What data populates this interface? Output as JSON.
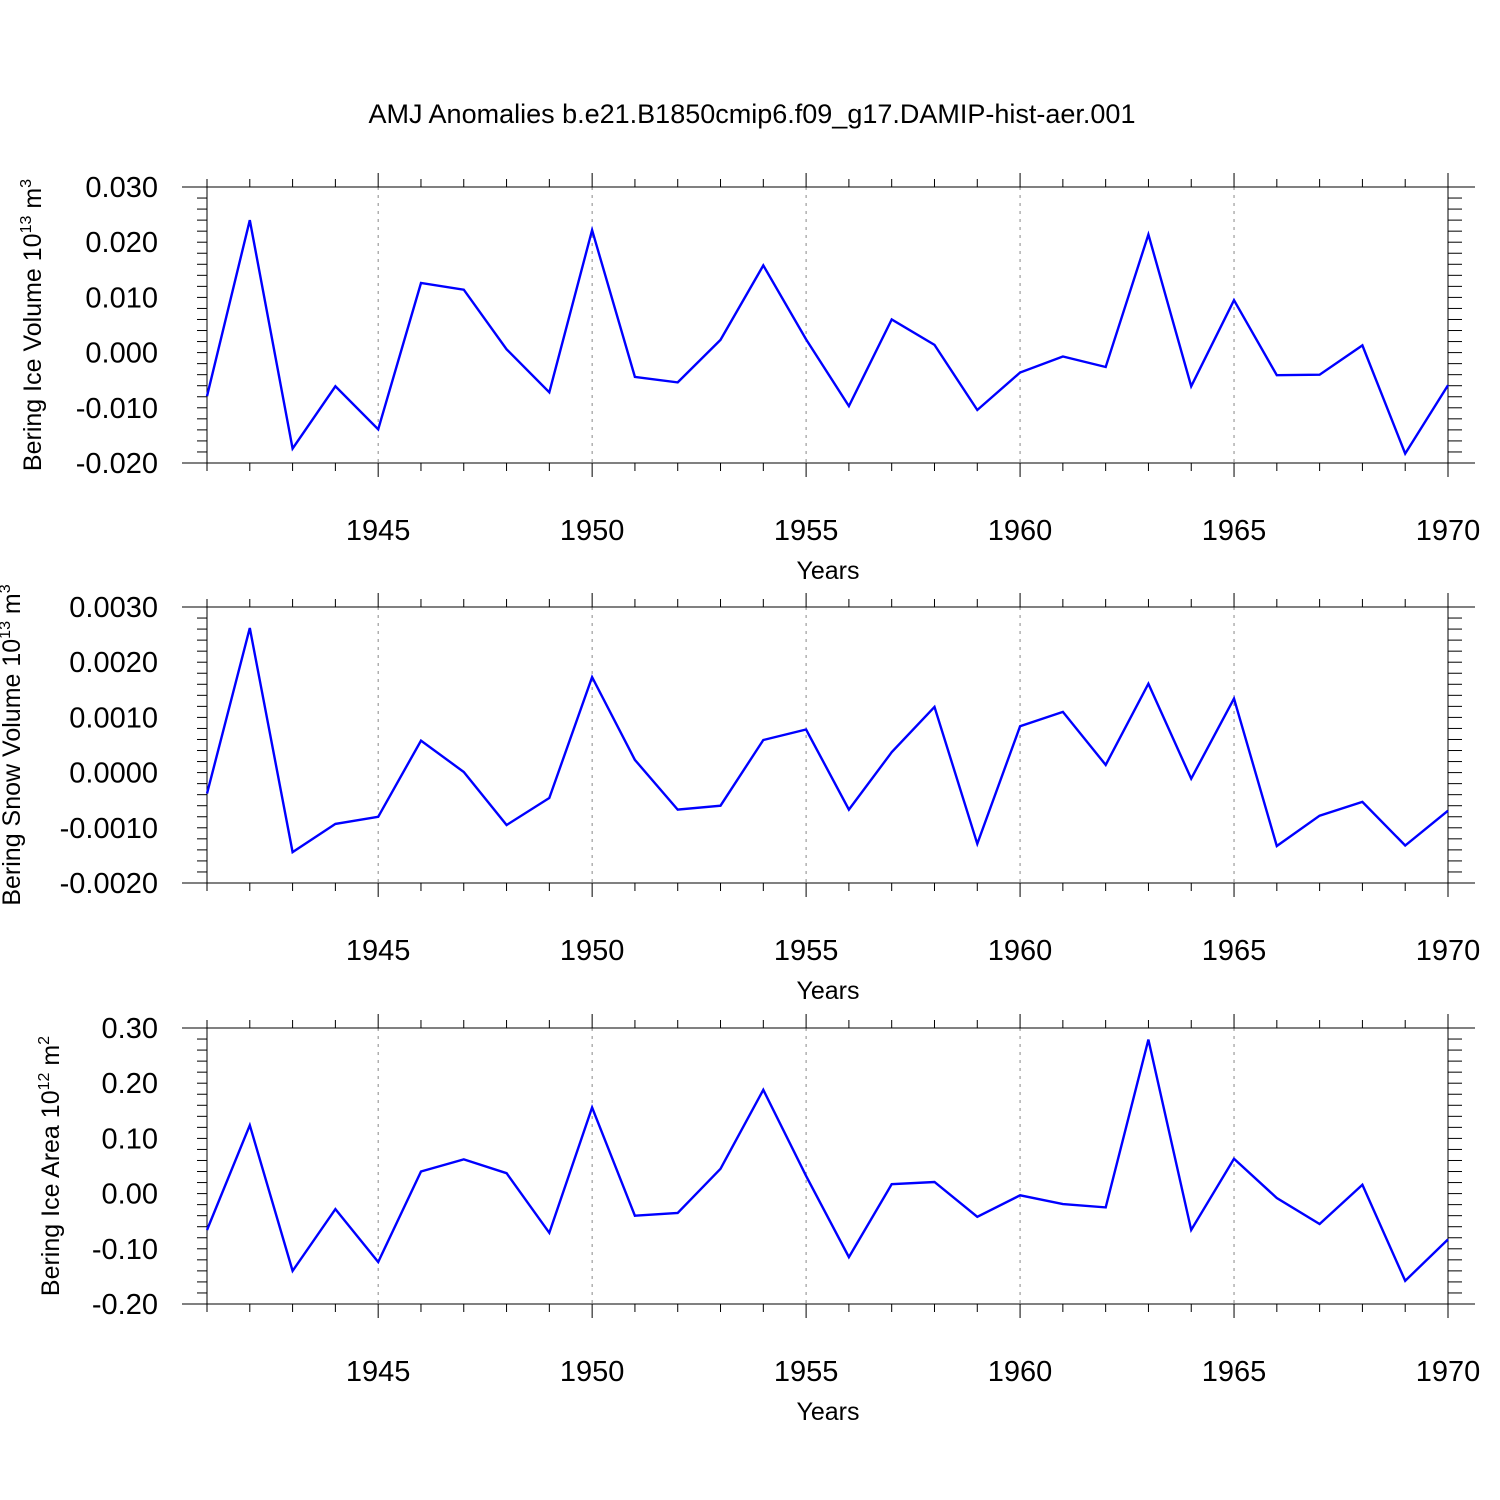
{
  "title": "AMJ Anomalies b.e21.B1850cmip6.f09_g17.DAMIP-hist-aer.001",
  "colors": {
    "line": "#0000ff",
    "axis": "#000000",
    "grid": "#888888"
  },
  "chart_data": [
    {
      "type": "line",
      "ylabel": {
        "text": "Bering Ice Volume 10",
        "sup": "13",
        "unit": "m",
        "unit_sup": "3"
      },
      "xlabel": "Years",
      "xlim": [
        1941,
        1970
      ],
      "ylim": [
        -0.02,
        0.03
      ],
      "yticks": [
        -0.02,
        -0.01,
        0.0,
        0.01,
        0.02,
        0.03
      ],
      "ytick_labels": [
        "-0.020",
        "-0.010",
        "0.000",
        "0.010",
        "0.020",
        "0.030"
      ],
      "xticks": [
        1945,
        1950,
        1955,
        1960,
        1965,
        1970
      ],
      "xtick_labels": [
        "1945",
        "1950",
        "1955",
        "1960",
        "1965",
        "1970"
      ],
      "grid": "vertical dashed at labeled x ticks",
      "x": [
        1941,
        1942,
        1943,
        1944,
        1945,
        1946,
        1947,
        1948,
        1949,
        1950,
        1951,
        1952,
        1953,
        1954,
        1955,
        1956,
        1957,
        1958,
        1959,
        1960,
        1961,
        1962,
        1963,
        1964,
        1965,
        1966,
        1967,
        1968,
        1969,
        1970
      ],
      "values": [
        -0.0079,
        0.024,
        -0.0174,
        -0.0061,
        -0.0139,
        0.0126,
        0.0114,
        0.0006,
        -0.0072,
        0.0222,
        -0.0044,
        -0.0054,
        0.0023,
        0.0158,
        0.0024,
        -0.0097,
        0.006,
        0.0014,
        -0.0104,
        -0.0036,
        -0.0007,
        -0.0026,
        0.0214,
        -0.0061,
        0.0095,
        -0.0041,
        -0.004,
        0.0013,
        -0.0183,
        -0.0059
      ]
    },
    {
      "type": "line",
      "ylabel": {
        "text": "Bering Snow Volume 10",
        "sup": "13",
        "unit": "m",
        "unit_sup": "3"
      },
      "xlabel": "Years",
      "xlim": [
        1941,
        1970
      ],
      "ylim": [
        -0.002,
        0.003
      ],
      "yticks": [
        -0.002,
        -0.001,
        0.0,
        0.001,
        0.002,
        0.003
      ],
      "ytick_labels": [
        "-0.0020",
        "-0.0010",
        "0.0000",
        "0.0010",
        "0.0020",
        "0.0030"
      ],
      "xticks": [
        1945,
        1950,
        1955,
        1960,
        1965,
        1970
      ],
      "xtick_labels": [
        "1945",
        "1950",
        "1955",
        "1960",
        "1965",
        "1970"
      ],
      "grid": "vertical dashed at labeled x ticks",
      "x": [
        1941,
        1942,
        1943,
        1944,
        1945,
        1946,
        1947,
        1948,
        1949,
        1950,
        1951,
        1952,
        1953,
        1954,
        1955,
        1956,
        1957,
        1958,
        1959,
        1960,
        1961,
        1962,
        1963,
        1964,
        1965,
        1966,
        1967,
        1968,
        1969,
        1970
      ],
      "values": [
        -0.00038,
        0.00262,
        -0.00144,
        -0.00093,
        -0.0008,
        0.00058,
        1e-05,
        -0.00095,
        -0.00046,
        0.00173,
        0.00023,
        -0.00067,
        -0.0006,
        0.00059,
        0.00078,
        -0.00067,
        0.00037,
        0.00119,
        -0.00129,
        0.00084,
        0.0011,
        0.00014,
        0.00161,
        -0.00011,
        0.00134,
        -0.00133,
        -0.00078,
        -0.00053,
        -0.00132,
        -0.00069
      ]
    },
    {
      "type": "line",
      "ylabel": {
        "text": "Bering Ice Area 10",
        "sup": "12",
        "unit": "m",
        "unit_sup": "2"
      },
      "xlabel": "Years",
      "xlim": [
        1941,
        1970
      ],
      "ylim": [
        -0.2,
        0.3
      ],
      "yticks": [
        -0.2,
        -0.1,
        0.0,
        0.1,
        0.2,
        0.3
      ],
      "ytick_labels": [
        "-0.20",
        "-0.10",
        "0.00",
        "0.10",
        "0.20",
        "0.30"
      ],
      "xticks": [
        1945,
        1950,
        1955,
        1960,
        1965,
        1970
      ],
      "xtick_labels": [
        "1945",
        "1950",
        "1955",
        "1960",
        "1965",
        "1970"
      ],
      "grid": "vertical dashed at labeled x ticks",
      "x": [
        1941,
        1942,
        1943,
        1944,
        1945,
        1946,
        1947,
        1948,
        1949,
        1950,
        1951,
        1952,
        1953,
        1954,
        1955,
        1956,
        1957,
        1958,
        1959,
        1960,
        1961,
        1962,
        1963,
        1964,
        1965,
        1966,
        1967,
        1968,
        1969,
        1970
      ],
      "values": [
        -0.066,
        0.124,
        -0.14,
        -0.028,
        -0.124,
        0.04,
        0.062,
        0.037,
        -0.071,
        0.156,
        -0.04,
        -0.035,
        0.045,
        0.188,
        0.032,
        -0.115,
        0.017,
        0.021,
        -0.042,
        -0.003,
        -0.019,
        -0.025,
        0.279,
        -0.066,
        0.063,
        -0.008,
        -0.055,
        0.016,
        -0.158,
        -0.083
      ]
    }
  ]
}
